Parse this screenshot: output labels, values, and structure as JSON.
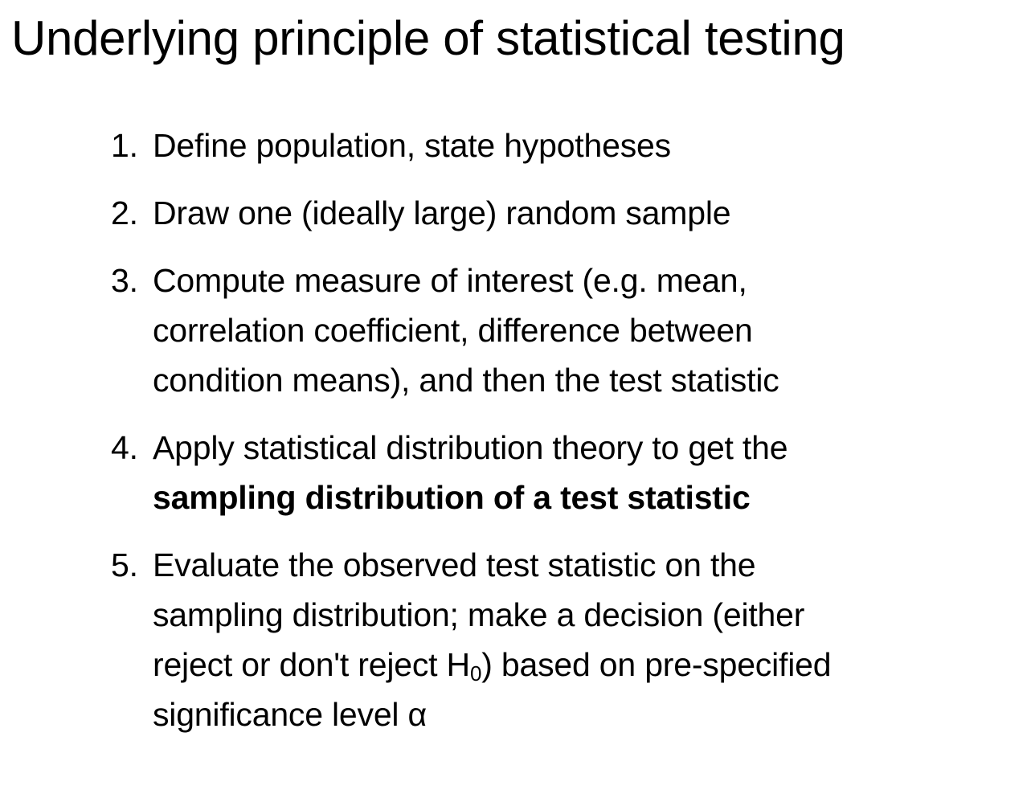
{
  "title": "Underlying principle of statistical testing",
  "steps": [
    {
      "number": "1.",
      "text": "Define population, state hypotheses"
    },
    {
      "number": "2.",
      "text": "Draw one (ideally large) random sample"
    },
    {
      "number": "3.",
      "line1": "Compute measure of interest (e.g. mean,",
      "line2": "correlation coefficient, difference between",
      "line3": "condition means), and then the test statistic"
    },
    {
      "number": "4.",
      "line1": "Apply statistical distribution theory to get the",
      "bold": "sampling distribution of a test statistic"
    },
    {
      "number": "5.",
      "line1": "Evaluate the observed test statistic on the",
      "line2": "sampling distribution; make a decision (either",
      "line3_before": "reject or don't reject H",
      "line3_sub": "0",
      "line3_after": ") based on pre-specified",
      "line4": "significance level α"
    }
  ]
}
